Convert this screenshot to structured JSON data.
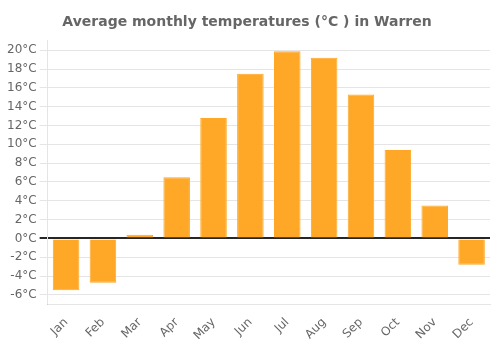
{
  "chart_data": {
    "type": "bar",
    "title": "Average monthly temperatures (°C ) in Warren",
    "categories": [
      "Jan",
      "Feb",
      "Mar",
      "Apr",
      "May",
      "Jun",
      "Jul",
      "Aug",
      "Sep",
      "Oct",
      "Nov",
      "Dec"
    ],
    "values": [
      -5.5,
      -4.7,
      0.4,
      6.5,
      12.8,
      17.5,
      19.9,
      19.2,
      15.3,
      9.4,
      3.5,
      -2.8
    ],
    "color": "#FFA726",
    "ylim": [
      -7,
      21
    ],
    "yticks": [
      {
        "value": -6,
        "label": "-6°C"
      },
      {
        "value": -4,
        "label": "-4°C"
      },
      {
        "value": -2,
        "label": "-2°C"
      },
      {
        "value": 0,
        "label": "0°C"
      },
      {
        "value": 2,
        "label": "2°C"
      },
      {
        "value": 4,
        "label": "4°C"
      },
      {
        "value": 6,
        "label": "6°C"
      },
      {
        "value": 8,
        "label": "8°C"
      },
      {
        "value": 10,
        "label": "10°C"
      },
      {
        "value": 12,
        "label": "12°C"
      },
      {
        "value": 14,
        "label": "14°C"
      },
      {
        "value": 16,
        "label": "16°C"
      },
      {
        "value": 18,
        "label": "18°C"
      },
      {
        "value": 20,
        "label": "20°C"
      }
    ],
    "grid": true
  }
}
